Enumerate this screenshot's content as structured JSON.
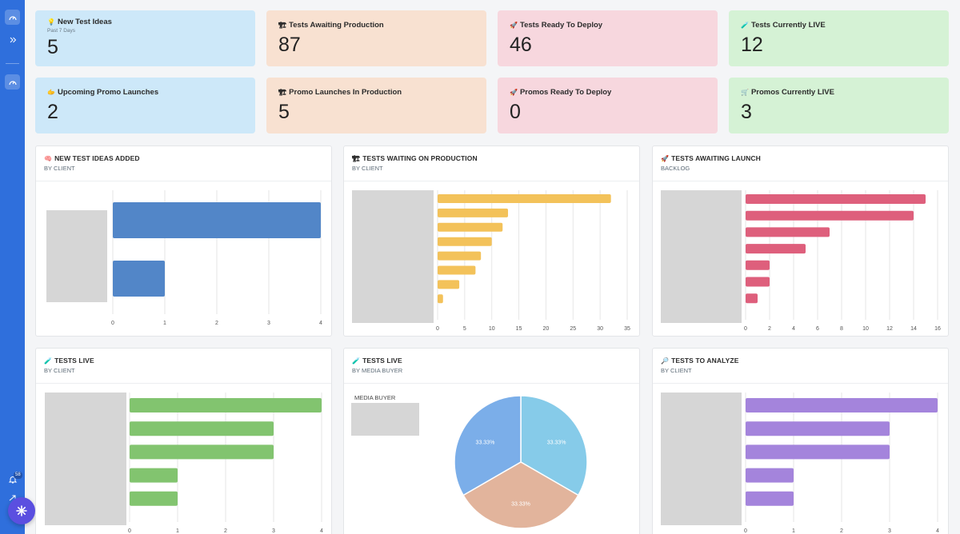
{
  "stats": [
    {
      "emoji": "💡",
      "title": "New Test Ideas",
      "subtitle": "Past 7 Days",
      "value": "5",
      "color": "blue"
    },
    {
      "emoji": "🏗",
      "title": "Tests Awaiting Production",
      "subtitle": "",
      "value": "87",
      "color": "orange"
    },
    {
      "emoji": "🚀",
      "title": "Tests Ready To Deploy",
      "subtitle": "",
      "value": "46",
      "color": "pink"
    },
    {
      "emoji": "🧪",
      "title": "Tests Currently LIVE",
      "subtitle": "",
      "value": "12",
      "color": "green"
    },
    {
      "emoji": "🫱",
      "title": "Upcoming Promo Launches",
      "subtitle": "",
      "value": "2",
      "color": "blue"
    },
    {
      "emoji": "🏗",
      "title": "Promo Launches In Production",
      "subtitle": "",
      "value": "5",
      "color": "orange"
    },
    {
      "emoji": "🚀",
      "title": "Promos Ready To Deploy",
      "subtitle": "",
      "value": "0",
      "color": "pink"
    },
    {
      "emoji": "🛒",
      "title": "Promos Currently LIVE",
      "subtitle": "",
      "value": "3",
      "color": "green"
    }
  ],
  "panels": [
    {
      "emoji": "🧠",
      "title": "NEW TEST IDEAS ADDED",
      "subtitle": "BY CLIENT"
    },
    {
      "emoji": "🏗",
      "title": "TESTS WAITING ON PRODUCTION",
      "subtitle": "BY CLIENT"
    },
    {
      "emoji": "🚀",
      "title": "TESTS AWAITING LAUNCH",
      "subtitle": "BACKLOG"
    },
    {
      "emoji": "🧪",
      "title": "TESTS LIVE",
      "subtitle": "BY CLIENT"
    },
    {
      "emoji": "🧪",
      "title": "TESTS LIVE",
      "subtitle": "BY MEDIA BUYER"
    },
    {
      "emoji": "🔎",
      "title": "TESTS TO ANALYZE",
      "subtitle": "BY CLIENT"
    }
  ],
  "media_buyer_label": "MEDIA BUYER",
  "notification_count": "58",
  "chart_data": [
    {
      "type": "bar",
      "orientation": "horizontal",
      "values": [
        4,
        1
      ],
      "xlim": [
        0,
        4
      ],
      "ticks": [
        0,
        1,
        2,
        3,
        4
      ],
      "color": "#5286c8"
    },
    {
      "type": "bar",
      "orientation": "horizontal",
      "values": [
        32,
        13,
        12,
        10,
        8,
        7,
        4,
        1
      ],
      "xlim": [
        0,
        35
      ],
      "ticks": [
        0,
        5,
        10,
        15,
        20,
        25,
        30,
        35
      ],
      "color": "#f3c25a"
    },
    {
      "type": "bar",
      "orientation": "horizontal",
      "values": [
        15,
        14,
        7,
        5,
        2,
        2,
        1
      ],
      "xlim": [
        0,
        16
      ],
      "ticks": [
        0,
        2,
        4,
        6,
        8,
        10,
        12,
        14,
        16
      ],
      "color": "#de5f7c"
    },
    {
      "type": "bar",
      "orientation": "horizontal",
      "values": [
        4,
        3,
        3,
        1,
        1
      ],
      "xlim": [
        0,
        4
      ],
      "ticks": [
        0,
        1,
        2,
        3,
        4
      ],
      "color": "#82c46f"
    },
    {
      "type": "pie",
      "values": [
        33.33,
        33.33,
        33.33
      ],
      "labels": [
        "33.33%",
        "33.33%",
        "33.33%"
      ],
      "colors": [
        "#86cbe9",
        "#e2b49c",
        "#7baee9"
      ]
    },
    {
      "type": "bar",
      "orientation": "horizontal",
      "values": [
        4,
        3,
        3,
        1,
        1
      ],
      "xlim": [
        0,
        4
      ],
      "ticks": [
        0,
        1,
        2,
        3,
        4
      ],
      "color": "#a484dc"
    }
  ]
}
